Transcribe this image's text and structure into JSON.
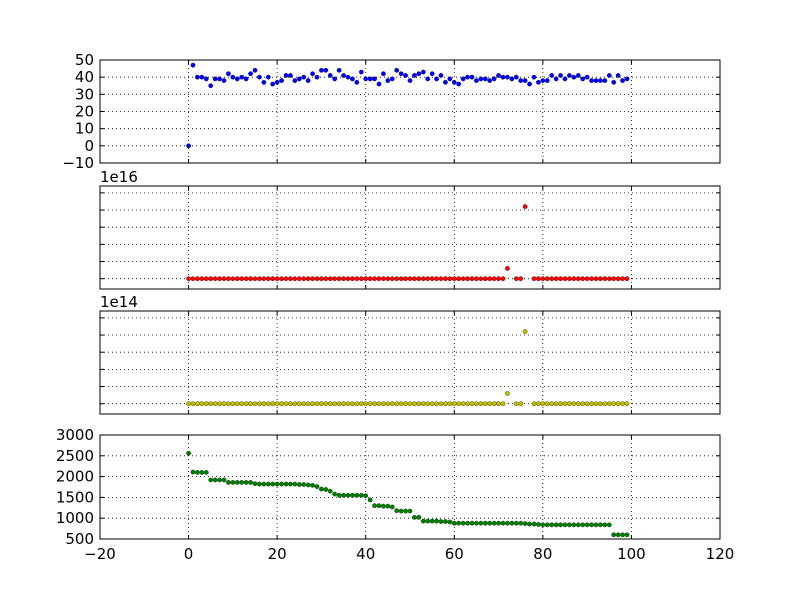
{
  "figure": {
    "background": "#ffffff"
  },
  "chart_data": [
    {
      "type": "scatter",
      "color": "#0000ff",
      "xlim": [
        -20,
        120
      ],
      "ylim": [
        -10,
        50
      ],
      "yticks": [
        -10,
        0,
        10,
        20,
        30,
        40,
        50
      ],
      "ytick_labels": [
        "−10",
        "0",
        "10",
        "20",
        "30",
        "40",
        "50"
      ],
      "xticks": [
        -20,
        0,
        20,
        40,
        60,
        80,
        100,
        120
      ],
      "show_xtick_labels": false,
      "grid": true,
      "exponent_label": "",
      "y": [
        0,
        47,
        40,
        40,
        39,
        35,
        39,
        39,
        38,
        42,
        40,
        39,
        40,
        39,
        42,
        44,
        40,
        37,
        40,
        36,
        37,
        38,
        41,
        41,
        38,
        39,
        40,
        38,
        42,
        40,
        44,
        44,
        41,
        39,
        44,
        41,
        40,
        39,
        37,
        43,
        39,
        39,
        39,
        36,
        42,
        38,
        39,
        44,
        42,
        41,
        38,
        41,
        42,
        43,
        39,
        42,
        39,
        41,
        37,
        39,
        37,
        36,
        39,
        40,
        40,
        38,
        39,
        39,
        38,
        39,
        41,
        40,
        40,
        39,
        40,
        38,
        38,
        36,
        40,
        37,
        38,
        38,
        41,
        39,
        41,
        39,
        41,
        40,
        41,
        39,
        40,
        38,
        38,
        38,
        38,
        41,
        37,
        41,
        38,
        39
      ]
    },
    {
      "type": "scatter",
      "color": "#ff0000",
      "xlim": [
        -20,
        120
      ],
      "ylim": [
        -0.6,
        5.4
      ],
      "yticks": [
        0,
        1,
        2,
        3,
        4,
        5
      ],
      "ytick_labels": [],
      "xticks": [
        -20,
        0,
        20,
        40,
        60,
        80,
        100,
        120
      ],
      "show_xtick_labels": false,
      "grid": true,
      "exponent_label": "1e16",
      "baseline_y": 0,
      "missing_x": [
        73,
        77
      ],
      "outliers": [
        {
          "x": 72,
          "y": 0.6
        },
        {
          "x": 76,
          "y": 4.2
        }
      ]
    },
    {
      "type": "scatter",
      "color": "#bfbf00",
      "xlim": [
        -20,
        120
      ],
      "ylim": [
        -0.6,
        5.4
      ],
      "yticks": [
        0,
        1,
        2,
        3,
        4,
        5
      ],
      "ytick_labels": [],
      "xticks": [
        -20,
        0,
        20,
        40,
        60,
        80,
        100,
        120
      ],
      "show_xtick_labels": false,
      "grid": true,
      "exponent_label": "1e14",
      "baseline_y": 0,
      "missing_x": [
        73,
        77
      ],
      "outliers": [
        {
          "x": 72,
          "y": 0.6
        },
        {
          "x": 76,
          "y": 4.2
        }
      ]
    },
    {
      "type": "scatter",
      "color": "#008000",
      "xlim": [
        -20,
        120
      ],
      "ylim": [
        500,
        3000
      ],
      "yticks": [
        500,
        1000,
        1500,
        2000,
        2500,
        3000
      ],
      "ytick_labels": [
        "500",
        "1000",
        "1500",
        "2000",
        "2500",
        "3000"
      ],
      "xticks": [
        -20,
        0,
        20,
        40,
        60,
        80,
        100,
        120
      ],
      "xtick_labels": [
        "−20",
        "0",
        "20",
        "40",
        "60",
        "80",
        "100",
        "120"
      ],
      "show_xtick_labels": true,
      "grid": true,
      "exponent_label": "",
      "y": [
        2560,
        2110,
        2100,
        2100,
        2100,
        1920,
        1920,
        1920,
        1920,
        1860,
        1860,
        1860,
        1860,
        1860,
        1860,
        1830,
        1820,
        1820,
        1820,
        1820,
        1820,
        1820,
        1820,
        1820,
        1820,
        1810,
        1810,
        1800,
        1790,
        1760,
        1700,
        1690,
        1650,
        1580,
        1550,
        1550,
        1550,
        1550,
        1550,
        1550,
        1540,
        1440,
        1300,
        1300,
        1290,
        1290,
        1270,
        1180,
        1170,
        1170,
        1170,
        1020,
        1020,
        930,
        930,
        930,
        930,
        920,
        920,
        910,
        880,
        880,
        880,
        880,
        880,
        880,
        880,
        880,
        880,
        880,
        880,
        880,
        880,
        880,
        880,
        880,
        870,
        860,
        860,
        850,
        840,
        840,
        840,
        840,
        840,
        840,
        840,
        840,
        840,
        840,
        840,
        840,
        840,
        840,
        840,
        840,
        600,
        600,
        600,
        600
      ]
    }
  ]
}
